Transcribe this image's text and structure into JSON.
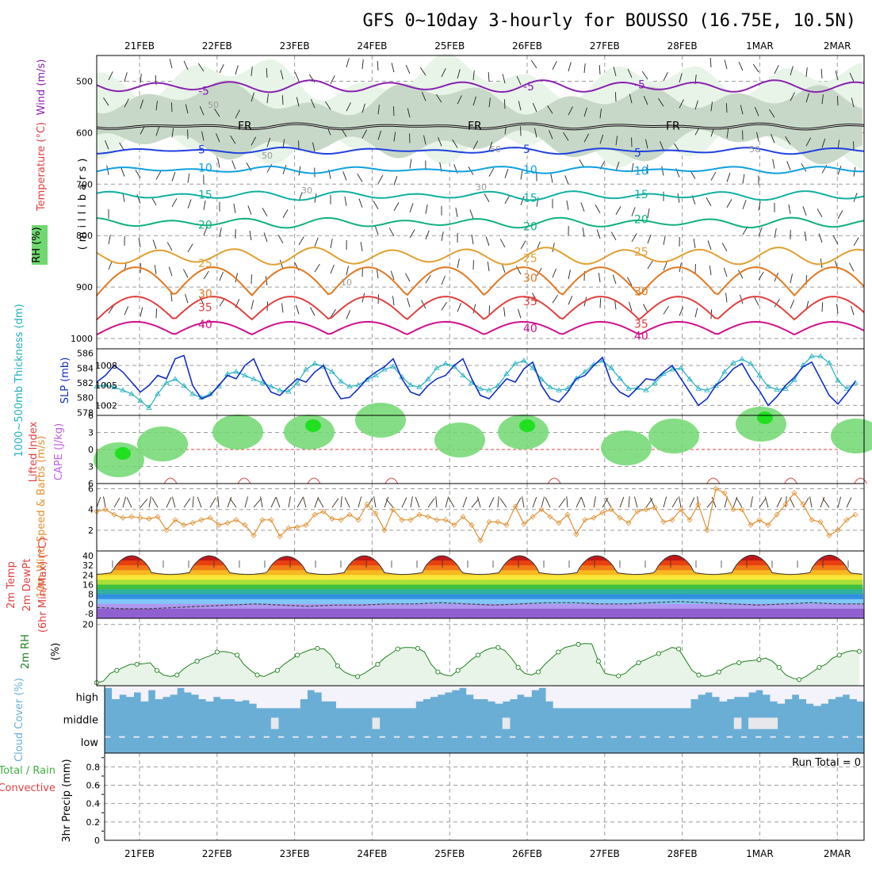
{
  "chart_data": {
    "type": "meteogram",
    "title": "GFS 0~10day 3-hourly for BOUSSO (16.75E, 10.5N)",
    "days": [
      "21FEB",
      "22FEB",
      "23FEB",
      "24FEB",
      "25FEB",
      "26FEB",
      "27FEB",
      "28FEB",
      "1MAR",
      "2MAR"
    ],
    "colors": {
      "freezing": "#000000",
      "t_neg5": "#8a20b0",
      "t_5": "#2040e0",
      "t_10": "#10a0e0",
      "t_15": "#10b0a0",
      "t_20": "#10b080",
      "t_25": "#e0a030",
      "t_30": "#e07820",
      "t_35": "#e04040",
      "t_40": "#d0108c",
      "rh_light": "#e8f4e8",
      "rh_mid": "#c8d8c8",
      "rh_green": "#70d870",
      "rh_bright": "#20e020",
      "slp": "#1030c0",
      "thickness": "#20b0c0",
      "wind10m": "#e09030",
      "rh2m": "#208020",
      "rh2m_fill": "#e8f4e8",
      "cloud": "#6aaed6",
      "cloud_bg": "#f4f2fa",
      "li_zero": "#e04040",
      "cape_label": "#c060e0"
    },
    "upper_panel": {
      "ylabel": "(millibars)",
      "label_wind": "Wind (m/s)",
      "label_temperature": "Temperature (°C)",
      "label_rh": "RH (%)",
      "pressure_ticks": [
        500,
        600,
        700,
        800,
        900,
        1000
      ],
      "pressure_range": [
        450,
        1020
      ],
      "fr_label": "FR",
      "isotherms": [
        {
          "label": "-5",
          "color_key": "t_neg5",
          "p_mean": 510,
          "amp": 18
        },
        {
          "label": "FR",
          "color_key": "freezing",
          "p_mean": 588,
          "amp": 5
        },
        {
          "label": "5",
          "color_key": "t_5",
          "p_mean": 635,
          "amp": 7
        },
        {
          "label": "10",
          "color_key": "t_10",
          "p_mean": 672,
          "amp": 8
        },
        {
          "label": "15",
          "color_key": "t_15",
          "p_mean": 722,
          "amp": 12
        },
        {
          "label": "20",
          "color_key": "t_20",
          "p_mean": 775,
          "amp": 14
        },
        {
          "label": "25",
          "color_key": "t_25",
          "p_mean": 840,
          "amp": 28
        },
        {
          "label": "30",
          "color_key": "t_30",
          "p_mean": 900,
          "amp": 55
        },
        {
          "label": "35",
          "color_key": "t_35",
          "p_mean": 950,
          "amp": 45
        },
        {
          "label": "40",
          "color_key": "t_40",
          "p_mean": 985,
          "amp": 25
        }
      ],
      "rh_contour_labels": [
        "50",
        "50",
        "50",
        "50",
        "30",
        "30",
        "10"
      ]
    },
    "slp_panel": {
      "label_thickness": "1000~500mb Thickness (dm)",
      "label_slp": "SLP (mb)",
      "thickness_ticks": [
        578,
        580,
        582,
        584,
        586
      ],
      "slp_ticks": [
        1002,
        1005,
        1008
      ],
      "slp": [
        1005.5,
        1006.5,
        1008,
        1007,
        1005.5,
        1004,
        1005,
        1006.5,
        1006,
        1009,
        1009.5,
        1005,
        1003,
        1003.5,
        1005,
        1006.5,
        1006,
        1008,
        1009,
        1006,
        1004,
        1003.5,
        1004.8,
        1006,
        1005.5,
        1007,
        1008,
        1005,
        1003,
        1003.2,
        1004.5,
        1006,
        1007,
        1007.8,
        1009,
        1006,
        1004,
        1003.5,
        1005,
        1006,
        1006.5,
        1008,
        1009,
        1006,
        1003.5,
        1003,
        1004.5,
        1006,
        1005.5,
        1007.5,
        1008.5,
        1005,
        1003,
        1002.5,
        1004,
        1006,
        1006.5,
        1008,
        1009.2,
        1005.5,
        1004,
        1003.3,
        1004.6,
        1006,
        1005.8,
        1007,
        1008,
        1006,
        1004,
        1002,
        1003,
        1005,
        1006,
        1007.5,
        1008.3,
        1006,
        1004.2,
        1002,
        1003.3,
        1005,
        1006.2,
        1007.8,
        1008.5,
        1006,
        1003.5,
        1002.2,
        1003.8,
        1005.6
      ],
      "thickness": [
        581.5,
        581.7,
        581.4,
        581,
        580.5,
        579.6,
        578.6,
        580.5,
        582,
        582.5,
        581.6,
        580.5,
        580,
        580.5,
        581.5,
        583.2,
        583.5,
        583,
        582.5,
        582,
        581.5,
        581,
        580.8,
        582,
        583.8,
        584.6,
        584.2,
        583.5,
        582.2,
        581.5,
        581.7,
        582.4,
        583,
        583.8,
        584.2,
        582.8,
        581.7,
        581.4,
        582.5,
        584,
        584.6,
        584.2,
        583,
        582,
        581.2,
        581,
        581.6,
        583.2,
        584.6,
        585,
        584,
        582.5,
        581.4,
        581,
        581.2,
        582.6,
        583.5,
        584.5,
        585,
        584,
        582.6,
        581.2,
        581.3,
        581,
        582,
        583.2,
        583.8,
        584,
        582.5,
        581.2,
        581,
        581.6,
        583.5,
        584.7,
        585.2,
        584.6,
        583,
        581.5,
        581.1,
        581.2,
        582.4,
        584.4,
        585.6,
        585.6,
        584.7,
        582.3,
        581.2,
        582
      ]
    },
    "li_panel": {
      "label_li": "Lifted Index",
      "label_cape": "CAPE (J/kg)",
      "li_ticks": [
        -6,
        -3,
        0,
        3,
        6
      ],
      "li_tick_labels": [
        "6",
        "3",
        "0",
        "3",
        "6"
      ],
      "li_range": [
        -6,
        6
      ],
      "cape_bump_days": [
        0.6,
        1.55,
        2.45,
        3.45,
        5.55,
        7.6,
        8.6,
        9.5
      ]
    },
    "wind10m_panel": {
      "label": "10m Wind Speed & Barbs (m/s)",
      "ticks": [
        2,
        4,
        6
      ],
      "range": [
        0,
        6.5
      ],
      "speed": [
        3.8,
        4,
        3.5,
        3.2,
        3.3,
        3.2,
        3.1,
        3.3,
        2,
        3,
        2.5,
        2.7,
        3,
        3.2,
        2.5,
        2.7,
        3,
        2.5,
        1.5,
        3,
        3,
        1.4,
        2.2,
        2.3,
        2.5,
        3.5,
        3.8,
        3.1,
        3,
        3.5,
        3,
        4.5,
        3.6,
        2,
        4,
        3,
        3,
        3.5,
        3.3,
        3,
        3,
        2.5,
        3.3,
        2.5,
        1,
        2.8,
        2.8,
        2.5,
        4.3,
        2.6,
        3.3,
        4,
        3.3,
        2.7,
        3.5,
        1.6,
        3,
        3.2,
        3.7,
        4,
        3.2,
        2.7,
        3.8,
        4,
        4.2,
        2.8,
        3,
        4,
        3,
        4.5,
        2,
        6,
        5.6,
        4,
        4,
        2.5,
        3,
        2.5,
        3.5,
        4.5,
        5.6,
        4.5,
        3,
        2.8,
        1.5,
        2,
        3,
        3.5
      ],
      "barb_angles": [
        20,
        -10,
        30,
        15,
        -25,
        40,
        10,
        -30,
        25,
        -15,
        35,
        5,
        -20,
        30,
        -5,
        20,
        -35,
        15,
        40,
        -10,
        25,
        -20,
        10,
        30,
        -15,
        20,
        -30,
        35,
        5,
        -25,
        15,
        30,
        -10,
        20,
        -40,
        25,
        10,
        -20,
        35,
        -5,
        15,
        -30,
        20,
        40,
        -15,
        25,
        5,
        -35,
        30,
        -10,
        20,
        15,
        -25,
        35,
        -5,
        25,
        -20,
        10,
        30,
        -30,
        20,
        5,
        -15,
        35,
        -25,
        15,
        30,
        -10,
        25,
        -5,
        40,
        -20,
        15,
        20,
        -30,
        10,
        35,
        -15,
        25,
        5,
        -25,
        30,
        -10,
        20,
        -35,
        15,
        25
      ]
    },
    "temp2m_panel": {
      "label_temp": "2m Temp",
      "label_dew": "2m DewPt",
      "label_minmax": "(6hr Min/Max) (°C)",
      "ticks": [
        -8,
        0,
        8,
        16,
        24,
        32,
        40
      ],
      "tick_labels": [
        "-8",
        "0",
        "8",
        "16",
        "24",
        "32",
        "40"
      ],
      "range": [
        -12,
        44
      ],
      "temp_max_days": [
        40,
        40,
        39.5,
        40,
        40,
        40,
        40,
        40.5,
        40.5
      ],
      "temp_min": 26,
      "dewpoint": [
        -3,
        -4,
        -4,
        -3,
        -2,
        -1,
        0,
        -1,
        -2,
        -1,
        -1,
        0,
        0,
        1,
        0,
        -1,
        0,
        1,
        1,
        0,
        0,
        1,
        2,
        1,
        0,
        -1,
        0,
        1,
        0,
        0
      ]
    },
    "rh2m_panel": {
      "label": "2m RH",
      "ylabel": "(%)",
      "ticks": [
        20
      ],
      "range": [
        0,
        22
      ],
      "rh": [
        1,
        1.5,
        4,
        5,
        6,
        7,
        7,
        7.2,
        7.5,
        5,
        3.5,
        3,
        3.5,
        5.5,
        7,
        8,
        9,
        9.8,
        11,
        11.2,
        10.8,
        10,
        7,
        5,
        3.5,
        3,
        4,
        5,
        7,
        8.5,
        10,
        11,
        11.8,
        12.2,
        12,
        10,
        6.5,
        4.5,
        3.5,
        3,
        4,
        5.5,
        7,
        9,
        10.5,
        12,
        12.5,
        12.5,
        12.2,
        11,
        7,
        4.5,
        3.5,
        3.2,
        5,
        6.5,
        8.5,
        10,
        11.5,
        12.3,
        12.5,
        11.5,
        9,
        6,
        4,
        3.5,
        4.5,
        7,
        9,
        11,
        12.5,
        13,
        13.5,
        13.8,
        13.7,
        8,
        4,
        3.5,
        3.2,
        4,
        6,
        7.5,
        8.5,
        9.5,
        10.5,
        11.5,
        12.5,
        12,
        8.5,
        5,
        3.5,
        3,
        3.5,
        4.5,
        6,
        7,
        7.5,
        8,
        8.2,
        8.5,
        9,
        8,
        6,
        3.5,
        2.5,
        2,
        3,
        4.5,
        6,
        7,
        9,
        10,
        11,
        11.5,
        11.2
      ]
    },
    "cloud_panel": {
      "label": "Cloud Cover (%)",
      "rows": [
        "high",
        "middle",
        "low"
      ],
      "high": [
        90,
        40,
        60,
        50,
        70,
        30,
        80,
        40,
        50,
        60,
        90,
        70,
        60,
        40,
        30,
        50,
        40,
        40,
        30,
        35,
        20,
        0,
        0,
        0,
        0,
        0,
        0,
        40,
        80,
        70,
        30,
        30,
        0,
        0,
        0,
        0,
        0,
        0,
        0,
        0,
        0,
        0,
        0,
        30,
        40,
        50,
        60,
        70,
        80,
        90,
        60,
        40,
        40,
        30,
        20,
        30,
        40,
        60,
        50,
        80,
        90,
        30,
        0,
        0,
        0,
        0,
        0,
        0,
        0,
        0,
        0,
        0,
        0,
        0,
        0,
        0,
        0,
        0,
        0,
        0,
        0,
        40,
        60,
        70,
        50,
        30,
        40,
        50,
        50,
        70,
        80,
        60,
        30,
        20,
        40,
        60,
        40,
        20,
        10,
        20,
        40,
        50,
        60,
        40,
        30
      ],
      "middle_gaps": [
        23,
        37,
        55,
        87,
        89,
        90,
        91,
        92
      ]
    },
    "precip_panel": {
      "label_total": "Total / Rain",
      "label_convective": "Convective",
      "ylabel": "3hr Precip (mm)",
      "ticks": [
        0,
        0.2,
        0.4,
        0.6,
        0.8
      ],
      "tick_labels": [
        "0",
        "0.2",
        "0.4",
        "0.6",
        "0.8"
      ],
      "range": [
        0,
        0.95
      ],
      "values": [],
      "run_total_label": "Run Total = 0"
    }
  }
}
